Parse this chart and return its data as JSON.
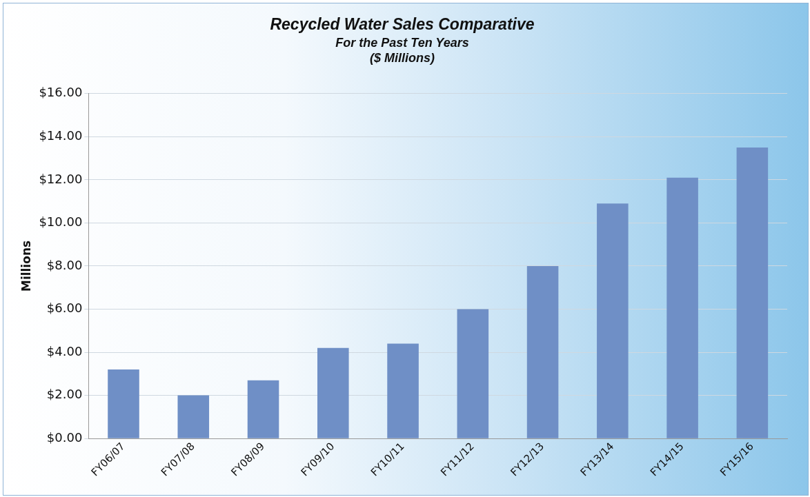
{
  "chart_data": {
    "type": "bar",
    "title": "Recycled Water Sales Comparative",
    "subtitle": "For the Past Ten Years\n($ Millions)",
    "ylabel": "Millions",
    "categories": [
      "FY06/07",
      "FY07/08",
      "FY08/09",
      "FY09/10",
      "FY10/11",
      "FY11/12",
      "FY12/13",
      "FY13/14",
      "FY14/15",
      "FY15/16"
    ],
    "values": [
      3.2,
      2.0,
      2.7,
      4.2,
      4.4,
      6.0,
      8.0,
      10.9,
      12.1,
      13.5
    ],
    "color": "#6f8fc6",
    "ylim": [
      0,
      16
    ],
    "yticks": [
      {
        "value": 0,
        "label": "$0.00"
      },
      {
        "value": 2,
        "label": "$2.00"
      },
      {
        "value": 4,
        "label": "$4.00"
      },
      {
        "value": 6,
        "label": "$6.00"
      },
      {
        "value": 8,
        "label": "$8.00"
      },
      {
        "value": 10,
        "label": "$10.00"
      },
      {
        "value": 12,
        "label": "$12.00"
      },
      {
        "value": 14,
        "label": "$14.00"
      },
      {
        "value": 16,
        "label": "$16.00"
      }
    ],
    "grid": "y",
    "legend": false
  }
}
